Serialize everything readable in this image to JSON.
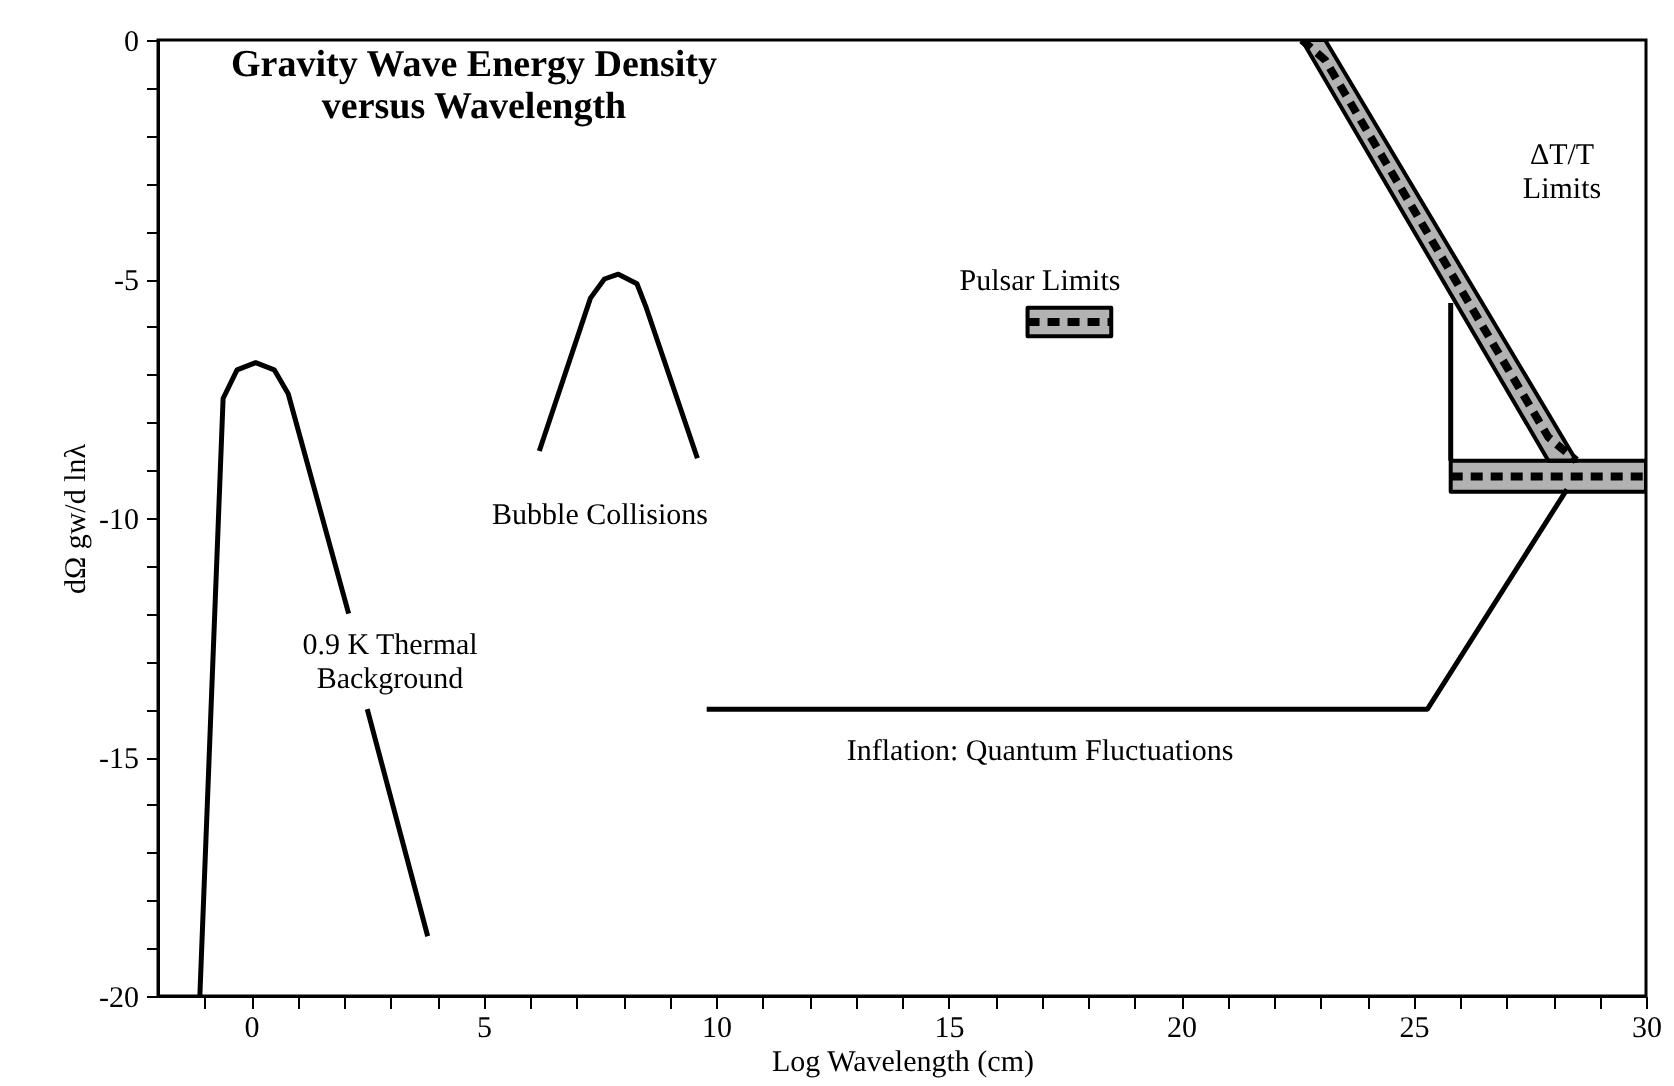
{
  "chart_data": {
    "type": "line",
    "title": "Gravity Wave Energy Density\nversus Wavelength",
    "xlabel": "Log Wavelength (cm)",
    "ylabel": "dΩ gw/d lnλ",
    "xlim": [
      -2,
      30
    ],
    "ylim": [
      -20,
      0
    ],
    "xticks": [
      {
        "value": -1,
        "label": null
      },
      0,
      {
        "value": 1,
        "label": null
      },
      {
        "value": 2,
        "label": null
      },
      {
        "value": 3,
        "label": null
      },
      {
        "value": 4,
        "label": null
      },
      5,
      {
        "value": 6,
        "label": null
      },
      {
        "value": 7,
        "label": null
      },
      {
        "value": 8,
        "label": null
      },
      {
        "value": 9,
        "label": null
      },
      10,
      {
        "value": 11,
        "label": null
      },
      {
        "value": 12,
        "label": null
      },
      {
        "value": 13,
        "label": null
      },
      {
        "value": 14,
        "label": null
      },
      15,
      {
        "value": 16,
        "label": null
      },
      {
        "value": 17,
        "label": null
      },
      {
        "value": 18,
        "label": null
      },
      {
        "value": 19,
        "label": null
      },
      20,
      {
        "value": 21,
        "label": null
      },
      {
        "value": 22,
        "label": null
      },
      {
        "value": 23,
        "label": null
      },
      {
        "value": 24,
        "label": null
      },
      25,
      {
        "value": 26,
        "label": null
      },
      {
        "value": 27,
        "label": null
      },
      {
        "value": 28,
        "label": null
      },
      {
        "value": 29,
        "label": null
      },
      30
    ],
    "yticks": [
      -20,
      {
        "value": -19,
        "label": null
      },
      {
        "value": -18,
        "label": null
      },
      {
        "value": -17,
        "label": null
      },
      {
        "value": -16,
        "label": null
      },
      -15,
      {
        "value": -14,
        "label": null
      },
      {
        "value": -13,
        "label": null
      },
      {
        "value": -12,
        "label": null
      },
      {
        "value": -11,
        "label": null
      },
      -10,
      {
        "value": -9,
        "label": null
      },
      {
        "value": -8,
        "label": null
      },
      {
        "value": -7,
        "label": null
      },
      {
        "value": -6,
        "label": null
      },
      -5,
      {
        "value": -4,
        "label": null
      },
      {
        "value": -3,
        "label": null
      },
      {
        "value": -2,
        "label": null
      },
      {
        "value": -1,
        "label": null
      },
      0
    ],
    "grid": false,
    "marker": "none",
    "line_style": "solid",
    "series": [
      {
        "color": "#000000",
        "x": [
          -1.1,
          -0.6,
          -0.3,
          0.1,
          0.5,
          0.8,
          2.1,
          2.3,
          2.5,
          3.8
        ],
        "values": [
          -20,
          -7.5,
          -6.9,
          -6.75,
          -6.9,
          -7.4,
          -12,
          null,
          -14,
          -18.75
        ]
      },
      {
        "color": "#000000",
        "x": [
          6.2,
          7.3,
          7.6,
          7.9,
          8.3,
          8.5,
          9.6
        ],
        "values": [
          -8.6,
          -5.4,
          -5.0,
          -4.9,
          -5.1,
          -5.6,
          -8.75
        ]
      },
      {
        "color": "#000000",
        "x": [
          9.8,
          25.3,
          28.3
        ],
        "values": [
          -14,
          -14,
          -9.4
        ]
      },
      {
        "color": "#000000",
        "line_style": "dashed",
        "x": [
          16.7,
          17.6,
          18.5
        ],
        "values": [
          -5.9,
          -5.9,
          -5.9
        ],
        "lower": [
          -6.2,
          -6.2,
          -6.2
        ],
        "upper": [
          -5.6,
          -5.6,
          -5.6
        ]
      },
      {
        "color": "#000000",
        "line_style": "dashed",
        "x": [
          22.6,
          23.1,
          27.9,
          28.5
        ],
        "values": [
          0,
          -0.42,
          -8.31,
          -8.8
        ],
        "lower": [
          0,
          -0.83,
          -8.8,
          -8.8
        ],
        "upper": [
          0,
          0,
          -7.82,
          -8.8
        ]
      },
      {
        "color": "#000000",
        "line_style": "dashed",
        "x": [
          25.8,
          27.9,
          30
        ],
        "values": [
          -9.13,
          -9.13,
          -9.13
        ],
        "lower": [
          -9.45,
          -9.45,
          -9.45
        ],
        "upper": [
          -8.8,
          -8.8,
          -8.8
        ]
      },
      {
        "color": "#000000",
        "x": [
          25.8,
          25.8
        ],
        "values": [
          -5.5,
          -8.8
        ]
      }
    ],
    "annotations": [
      "Bubble Collisions",
      "0.9 K  Thermal\nBackground",
      "Pulsar Limits",
      "ΔT/T\nLimits",
      "Inflation: Quantum Fluctuations"
    ]
  }
}
